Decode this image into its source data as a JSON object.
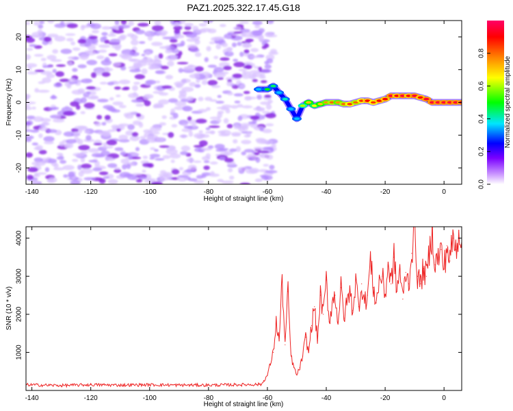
{
  "title": "PAZ1.2025.322.17.45.G18",
  "chart_data": [
    {
      "type": "heatmap",
      "xlabel": "Height of straight line (km)",
      "ylabel": "Frequency (Hz)",
      "xlim": [
        -142,
        6
      ],
      "ylim": [
        -25,
        25
      ],
      "xticks": [
        -140,
        -120,
        -100,
        -80,
        -60,
        -40,
        -20,
        0
      ],
      "yticks": [
        -20,
        -10,
        0,
        10,
        20
      ],
      "noise_region_x": [
        -142,
        -60
      ],
      "signal_track": {
        "x": [
          -63,
          -60,
          -58,
          -56,
          -54,
          -52,
          -50,
          -48,
          -46,
          -44,
          -42,
          -40,
          -38,
          -36,
          -34,
          -32,
          -30,
          -28,
          -26,
          -24,
          -22,
          -20,
          -18,
          -16,
          -14,
          -12,
          -10,
          -8,
          -6,
          -4,
          -2,
          0,
          2,
          4,
          6
        ],
        "frequency": [
          4,
          4,
          5,
          3,
          1,
          -2,
          -5,
          -1,
          0,
          -1,
          -0.5,
          0,
          0,
          0,
          -0.5,
          -0.5,
          0,
          0.5,
          0.5,
          0,
          0.5,
          1,
          2,
          2,
          2,
          2,
          2,
          1.5,
          1,
          0,
          0,
          0,
          0,
          0,
          0
        ],
        "amplitude": [
          0.35,
          0.5,
          0.45,
          0.35,
          0.4,
          0.35,
          0.35,
          0.6,
          0.7,
          0.65,
          0.7,
          0.75,
          0.8,
          0.75,
          0.8,
          0.85,
          0.8,
          0.85,
          0.9,
          0.85,
          0.9,
          0.9,
          0.95,
          0.9,
          0.95,
          0.9,
          0.95,
          0.9,
          0.95,
          0.95,
          0.95,
          0.95,
          0.95,
          0.95,
          0.95
        ]
      },
      "colorbar": {
        "label": "Normalized spectral amplitude",
        "range": [
          0,
          1
        ],
        "ticks": [
          "0.0",
          "0.2",
          "0.4",
          "0.6",
          "0.8"
        ],
        "colors": [
          "#ffffff",
          "#cc99ff",
          "#7a00ff",
          "#0000ff",
          "#00e5ff",
          "#00ff00",
          "#ffff00",
          "#ff8800",
          "#ff0000",
          "#ff0066"
        ]
      }
    },
    {
      "type": "line",
      "xlabel": "Height of straight line (km)",
      "ylabel": "SNR (10 * v/v)",
      "xlim": [
        -142,
        6
      ],
      "ylim": [
        0,
        4300
      ],
      "xticks": [
        -140,
        -120,
        -100,
        -80,
        -60,
        -40,
        -20,
        0
      ],
      "yticks": [
        1000,
        2000,
        3000,
        4000
      ],
      "series": [
        {
          "name": "SNR",
          "color": "#ee2222",
          "x": [
            -142,
            -130,
            -120,
            -110,
            -100,
            -90,
            -80,
            -70,
            -62,
            -60,
            -59,
            -58,
            -57,
            -56,
            -55,
            -54,
            -53,
            -52,
            -51,
            -50,
            -49,
            -48,
            -47,
            -46,
            -45,
            -44,
            -43,
            -42,
            -41,
            -40,
            -39,
            -38,
            -37,
            -36,
            -35,
            -34,
            -33,
            -32,
            -31,
            -30,
            -29,
            -28,
            -27,
            -26,
            -25,
            -24,
            -23,
            -22,
            -21,
            -20,
            -19,
            -18,
            -17,
            -16,
            -15,
            -14,
            -13,
            -12,
            -11,
            -10,
            -9,
            -8,
            -7,
            -6,
            -5,
            -4,
            -3,
            -2,
            -1,
            0,
            1,
            2,
            3,
            4,
            5,
            6
          ],
          "y": [
            150,
            130,
            150,
            140,
            150,
            140,
            140,
            150,
            160,
            400,
            700,
            1000,
            1800,
            1300,
            2900,
            1200,
            2600,
            900,
            600,
            400,
            600,
            900,
            1400,
            1000,
            1700,
            2200,
            1300,
            2500,
            2000,
            2900,
            1800,
            2300,
            2500,
            1800,
            2700,
            1900,
            2300,
            2600,
            2100,
            2900,
            2200,
            2800,
            2300,
            2500,
            3400,
            2700,
            2300,
            2900,
            3000,
            2500,
            3300,
            2800,
            3500,
            2600,
            3200,
            2400,
            3100,
            2800,
            3600,
            4300,
            3000,
            2800,
            3200,
            3000,
            3600,
            4200,
            3300,
            3500,
            3700,
            3200,
            3800,
            3400,
            4000,
            3700,
            4200,
            3900
          ]
        }
      ]
    }
  ]
}
